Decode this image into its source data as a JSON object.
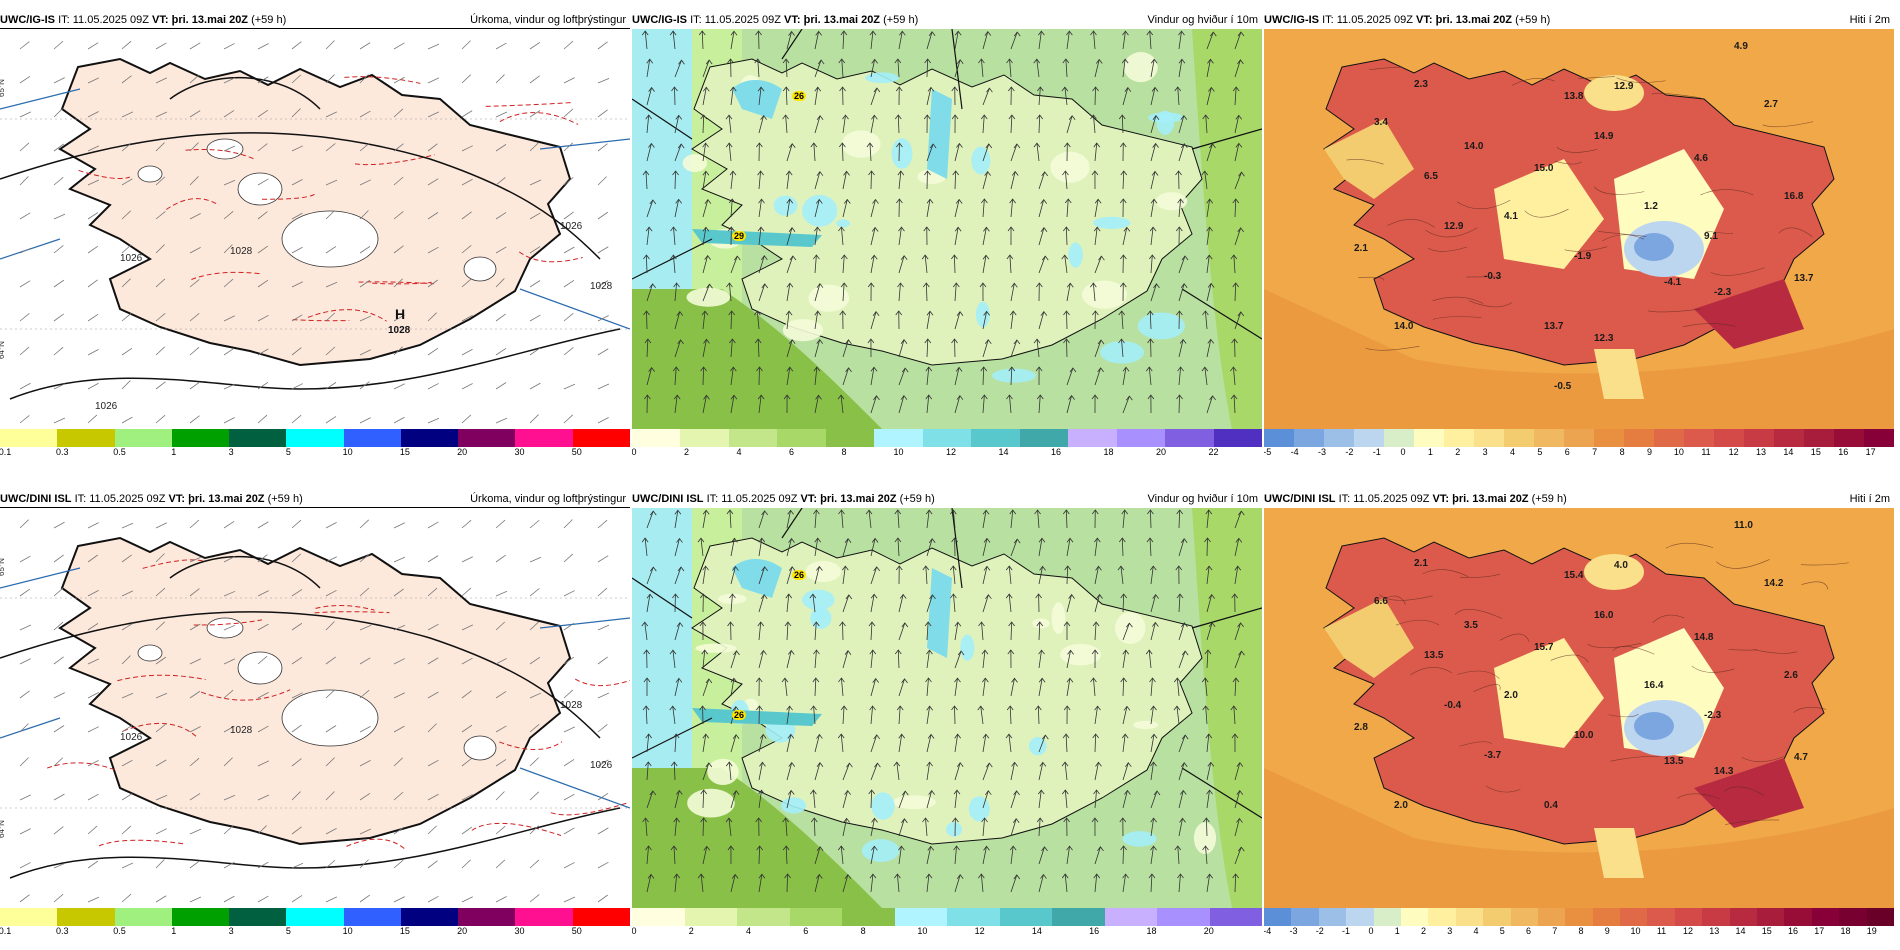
{
  "rows": [
    {
      "model": "UWC/IG-IS",
      "panels": [
        {
          "id": "precip",
          "run": "IT: 11.05.2025 09Z",
          "vt": "VT: þri. 13.mai 20Z",
          "lead": "(+59 h)",
          "title": "Úrkoma, vindur og loftþrýstingur",
          "legend_colors": [
            "#ffff99",
            "#c8c800",
            "#a0f080",
            "#00a000",
            "#006040",
            "#00ffff",
            "#3060ff",
            "#000080",
            "#800060",
            "#ff1090",
            "#ff0000"
          ],
          "ticks": [
            "0.1",
            "0.3",
            "0.5",
            "1",
            "3",
            "5",
            "10",
            "15",
            "20",
            "30",
            "50"
          ],
          "pressure_labels": [
            "1028",
            "1026",
            "1028",
            "1026",
            "1026"
          ],
          "high_label": "H",
          "high_value": "1028"
        },
        {
          "id": "wind",
          "run": "IT: 11.05.2025 09Z",
          "vt": "VT: þri. 13.mai 20Z",
          "lead": "(+59 h)",
          "title": "Vindur og hviður í 10m",
          "legend_colors": [
            "#ffffe0",
            "#e4f5b0",
            "#c4e68a",
            "#a8d868",
            "#88c048",
            "#b0f4ff",
            "#80e0e8",
            "#58c8cc",
            "#40a8a8",
            "#c8b0ff",
            "#a890ff",
            "#8060e0",
            "#5030c0"
          ],
          "ticks": [
            "0",
            "2",
            "4",
            "6",
            "8",
            "10",
            "12",
            "14",
            "16",
            "18",
            "20",
            "22"
          ],
          "max_labels": [
            "26",
            "29"
          ]
        },
        {
          "id": "temp",
          "run": "IT: 11.05.2025 09Z",
          "vt": "VT: þri. 13.mai 20Z",
          "lead": "(+59 h)",
          "title": "Hiti í 2m",
          "legend_colors": [
            "#5b8fd8",
            "#7ba6e0",
            "#9cbfe8",
            "#bcd6f0",
            "#d8eec8",
            "#fffcc0",
            "#fff0a0",
            "#fae08a",
            "#f4cc70",
            "#f0b860",
            "#eca450",
            "#e89040",
            "#e57c40",
            "#e06a48",
            "#dc5a4c",
            "#d44a48",
            "#c83a44",
            "#b82a40",
            "#a81c3c",
            "#980c38",
            "#880038"
          ],
          "ticks": [
            "-5",
            "-4",
            "-3",
            "-2",
            "-1",
            "0",
            "1",
            "2",
            "3",
            "4",
            "5",
            "6",
            "7",
            "8",
            "9",
            "10",
            "11",
            "12",
            "13",
            "14",
            "15",
            "16",
            "17"
          ],
          "values": [
            "4.9",
            "2.3",
            "12.9",
            "2.7",
            "13.8",
            "3.4",
            "14.0",
            "14.9",
            "4.6",
            "6.5",
            "15.0",
            "16.8",
            "1.2",
            "4.1",
            "12.9",
            "9.1",
            "2.1",
            "-1.9",
            "-0.3",
            "-4.1",
            "-2.3",
            "13.7",
            "14.0",
            "13.7",
            "12.3",
            "-0.5"
          ]
        }
      ]
    },
    {
      "model": "UWC/DINI ISL",
      "panels": [
        {
          "id": "precip",
          "run": "IT: 11.05.2025 09Z",
          "vt": "VT: þri. 13.mai 20Z",
          "lead": "(+59 h)",
          "title": "Úrkoma, vindur og loftþrýstingur",
          "legend_colors": [
            "#ffff99",
            "#c8c800",
            "#a0f080",
            "#00a000",
            "#006040",
            "#00ffff",
            "#3060ff",
            "#000080",
            "#800060",
            "#ff1090",
            "#ff0000"
          ],
          "ticks": [
            "0.1",
            "0.3",
            "0.5",
            "1",
            "3",
            "5",
            "10",
            "15",
            "20",
            "30",
            "50"
          ],
          "pressure_labels": [
            "1028",
            "1026",
            "1026",
            "1028"
          ],
          "high_label": "",
          "high_value": ""
        },
        {
          "id": "wind",
          "run": "IT: 11.05.2025 09Z",
          "vt": "VT: þri. 13.mai 20Z",
          "lead": "(+59 h)",
          "title": "Vindur og hviður í 10m",
          "legend_colors": [
            "#ffffe0",
            "#e4f5b0",
            "#c4e68a",
            "#a8d868",
            "#88c048",
            "#b0f4ff",
            "#80e0e8",
            "#58c8cc",
            "#40a8a8",
            "#c8b0ff",
            "#a890ff",
            "#8060e0"
          ],
          "ticks": [
            "0",
            "2",
            "4",
            "6",
            "8",
            "10",
            "12",
            "14",
            "16",
            "18",
            "20"
          ],
          "max_labels": [
            "26",
            "26"
          ]
        },
        {
          "id": "temp",
          "run": "IT: 11.05.2025 09Z",
          "vt": "VT: þri. 13.mai 20Z",
          "lead": "(+59 h)",
          "title": "Hiti í 2m",
          "legend_colors": [
            "#5b8fd8",
            "#7ba6e0",
            "#9cbfe8",
            "#bcd6f0",
            "#d8eec8",
            "#fffcc0",
            "#fff0a0",
            "#fae08a",
            "#f4cc70",
            "#f0b860",
            "#eca450",
            "#e89040",
            "#e57c40",
            "#e06a48",
            "#dc5a4c",
            "#d44a48",
            "#c83a44",
            "#b82a40",
            "#a81c3c",
            "#980c38",
            "#880038",
            "#780030",
            "#680028"
          ],
          "ticks": [
            "-4",
            "-3",
            "-2",
            "-1",
            "0",
            "1",
            "2",
            "3",
            "4",
            "5",
            "6",
            "7",
            "8",
            "9",
            "10",
            "11",
            "12",
            "13",
            "14",
            "15",
            "16",
            "17",
            "18",
            "19"
          ],
          "values": [
            "11.0",
            "2.1",
            "4.0",
            "14.2",
            "15.4",
            "6.6",
            "3.5",
            "16.0",
            "14.8",
            "13.5",
            "15.7",
            "2.6",
            "16.4",
            "2.0",
            "-0.4",
            "-2.3",
            "2.8",
            "10.0",
            "-3.7",
            "13.5",
            "14.3",
            "4.7",
            "2.0",
            "0.4"
          ]
        }
      ]
    }
  ],
  "axis_labels": [
    "65°N",
    "64°N"
  ]
}
